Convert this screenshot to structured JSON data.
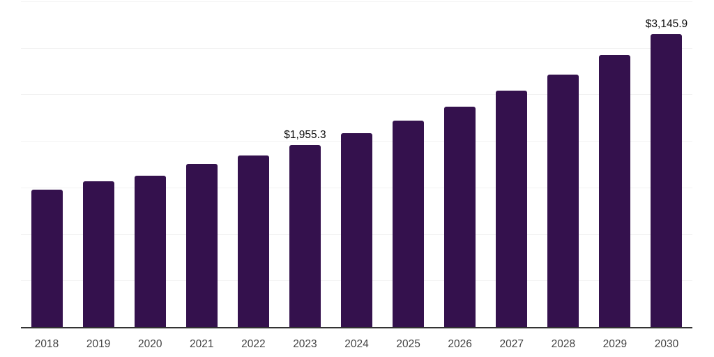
{
  "chart_data": {
    "type": "bar",
    "title": "",
    "xlabel": "",
    "ylabel": "",
    "categories": [
      "2018",
      "2019",
      "2020",
      "2021",
      "2022",
      "2023",
      "2024",
      "2025",
      "2026",
      "2027",
      "2028",
      "2029",
      "2030"
    ],
    "values": [
      1480,
      1570,
      1630,
      1750,
      1845,
      1955.3,
      2080,
      2220,
      2370,
      2540,
      2715,
      2920,
      3145.9
    ],
    "bar_labels": [
      "",
      "",
      "",
      "",
      "",
      "$1,955.3",
      "",
      "",
      "",
      "",
      "",
      "",
      "$3,145.9"
    ],
    "ylim": [
      0,
      3500
    ],
    "gridline_step": 500,
    "grid": true,
    "legend_position": "none",
    "y_tick_labels_visible": false,
    "colors": {
      "bar": "#34114d",
      "axis_line": "#333333",
      "gridline": "#f2f2f2",
      "tick_label": "#444444",
      "data_label": "#0d0d0d",
      "background": "#ffffff"
    }
  }
}
